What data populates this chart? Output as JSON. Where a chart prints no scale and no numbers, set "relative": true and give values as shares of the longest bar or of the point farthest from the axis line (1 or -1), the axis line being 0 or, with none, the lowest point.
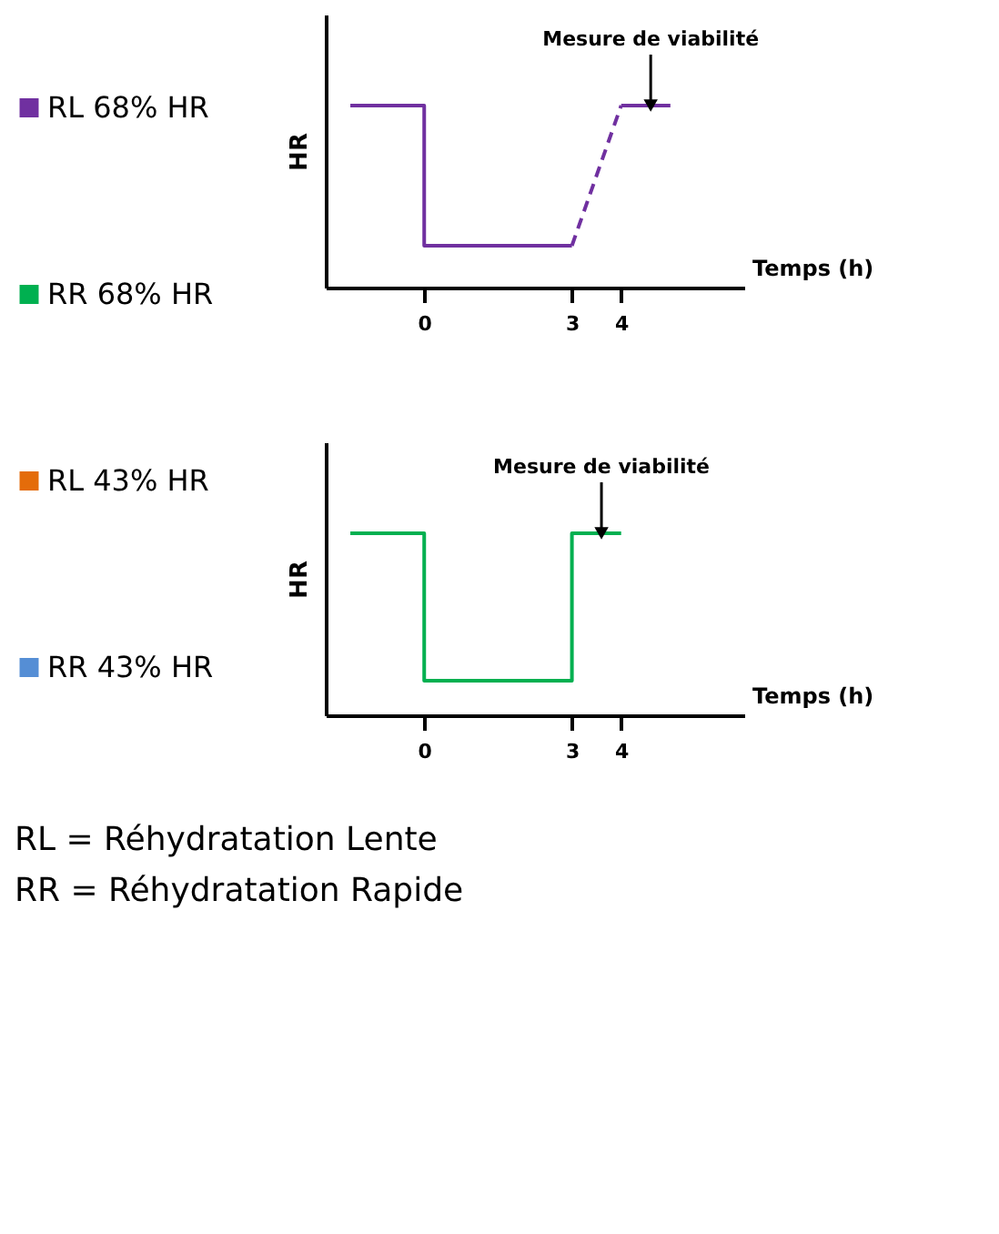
{
  "chart_data": [
    {
      "type": "other",
      "categories": [
        "RL 68% HR",
        "RR 68% HR",
        "RL 43% HR",
        "RR 43% HR"
      ],
      "colors": [
        "#7030a0",
        "#00b050",
        "#e46c0a",
        "#558ed5"
      ],
      "annotations": [
        "RL = Réhydratation  Lente",
        "RR = Réhydratation Rapide"
      ]
    },
    {
      "type": "line",
      "relative": true,
      "xlabel": "Temps (h)",
      "ylabel": "HR",
      "xlim": [
        -2,
        6.5
      ],
      "xticks": [
        0,
        3,
        4
      ],
      "tick_labels": "x",
      "grid": false,
      "series": [
        {
          "color": "#7030a0",
          "line_style": "solid",
          "x": [
            -1.5,
            0,
            0,
            3
          ],
          "values": [
            1,
            1,
            0.23,
            0.23
          ]
        },
        {
          "color": "#7030a0",
          "line_style": "dashed",
          "x": [
            3,
            4
          ],
          "values": [
            0.23,
            1
          ]
        },
        {
          "color": "#7030a0",
          "line_style": "solid",
          "x": [
            4,
            5
          ],
          "values": [
            1,
            1
          ]
        }
      ],
      "annotations": [
        {
          "text": "Mesure de viabilité",
          "x": 4.6,
          "y": 1
        }
      ]
    },
    {
      "type": "line",
      "relative": true,
      "xlabel": "Temps (h)",
      "ylabel": "HR",
      "xlim": [
        -2,
        6.5
      ],
      "xticks": [
        0,
        3,
        4
      ],
      "tick_labels": "x",
      "grid": false,
      "series": [
        {
          "color": "#00b050",
          "line_style": "solid",
          "x": [
            -1.5,
            0,
            0,
            3,
            3,
            4
          ],
          "values": [
            1,
            1,
            0.19,
            0.19,
            1,
            1
          ]
        }
      ],
      "annotations": [
        {
          "text": "Mesure de viabilité",
          "x": 3.6,
          "y": 1
        }
      ]
    }
  ]
}
